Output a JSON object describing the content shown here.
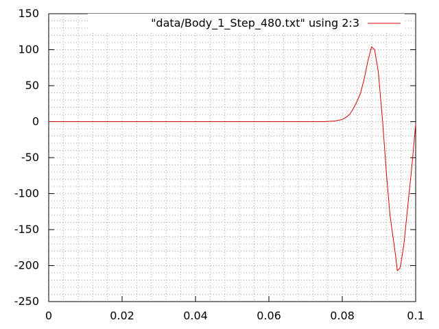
{
  "chart_data": {
    "type": "line",
    "title": "",
    "xlabel": "",
    "ylabel": "",
    "xlim": [
      0,
      0.1
    ],
    "ylim": [
      -250,
      150
    ],
    "xticks": [
      "0",
      "0.02",
      "0.04",
      "0.06",
      "0.08",
      "0.1"
    ],
    "xtick_values": [
      0,
      0.02,
      0.04,
      0.06,
      0.08,
      0.1
    ],
    "yticks": [
      "150",
      "100",
      "50",
      "0",
      "-50",
      "-100",
      "-150",
      "-200",
      "-250"
    ],
    "ytick_values": [
      150,
      100,
      50,
      0,
      -50,
      -100,
      -150,
      -200,
      -250
    ],
    "grid": true,
    "legend_position": "top-right",
    "series": [
      {
        "name": "\"data/Body_1_Step_480.txt\" using 2:3",
        "color": "#d40000",
        "x": [
          0,
          0.05,
          0.07,
          0.075,
          0.078,
          0.08,
          0.081,
          0.082,
          0.083,
          0.084,
          0.085,
          0.086,
          0.087,
          0.088,
          0.0888,
          0.0898,
          0.091,
          0.092,
          0.093,
          0.0945,
          0.095,
          0.0958,
          0.0968,
          0.098,
          0.099,
          0.1
        ],
        "y": [
          0,
          0,
          0,
          0,
          1,
          3,
          6,
          10,
          18,
          28,
          40,
          60,
          85,
          104,
          100,
          70,
          0,
          -70,
          -130,
          -185,
          -207,
          -203,
          -170,
          -110,
          -60,
          -3
        ]
      }
    ]
  }
}
